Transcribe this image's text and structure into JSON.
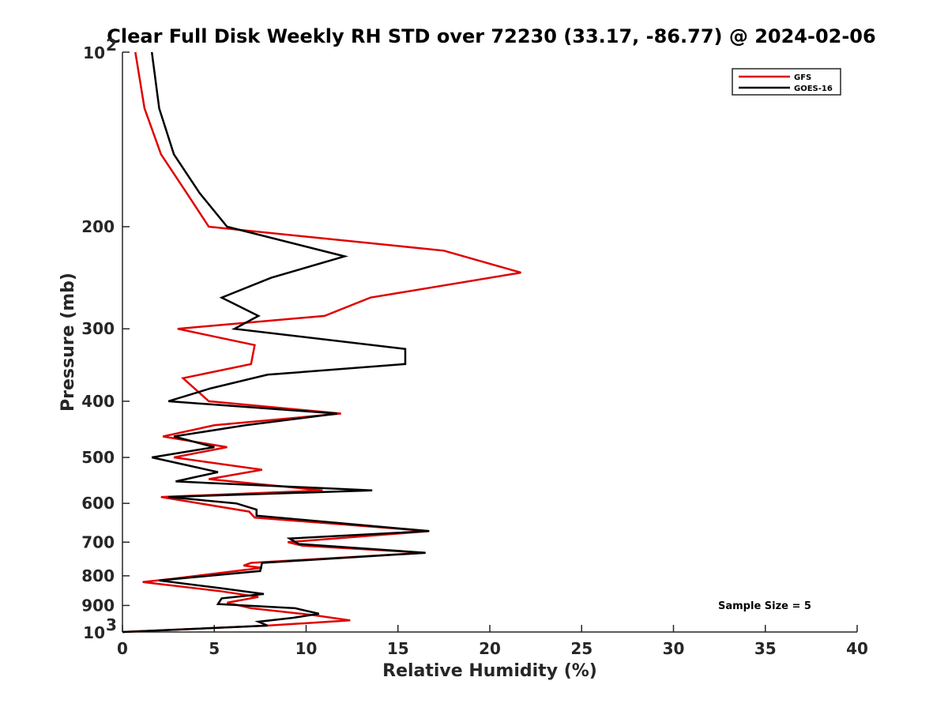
{
  "chart_data": {
    "type": "line",
    "title": "Clear Full Disk Weekly RH STD over 72230 (33.17, -86.77) @ 2024-02-06",
    "xlabel": "Relative Humidity (%)",
    "ylabel": "Pressure (mb)",
    "xlim": [
      0,
      40
    ],
    "ylim": [
      100,
      1000
    ],
    "yscale": "log",
    "y_direction": "reversed",
    "grid": false,
    "x_ticks": [
      "0",
      "5",
      "10",
      "15",
      "20",
      "25",
      "30",
      "35",
      "40"
    ],
    "y_ticks": [
      {
        "value": 100,
        "label": "10",
        "sup": "2"
      },
      {
        "value": 200,
        "label": "200",
        "sup": ""
      },
      {
        "value": 300,
        "label": "300",
        "sup": ""
      },
      {
        "value": 400,
        "label": "400",
        "sup": ""
      },
      {
        "value": 500,
        "label": "500",
        "sup": ""
      },
      {
        "value": 600,
        "label": "600",
        "sup": ""
      },
      {
        "value": 700,
        "label": "700",
        "sup": ""
      },
      {
        "value": 800,
        "label": "800",
        "sup": ""
      },
      {
        "value": 900,
        "label": "900",
        "sup": ""
      },
      {
        "value": 1000,
        "label": "10",
        "sup": "3"
      }
    ],
    "legend_position": "top-right",
    "series": [
      {
        "name": "GFS",
        "color": "#e00000",
        "points": [
          [
            0.7,
            100
          ],
          [
            1.2,
            125
          ],
          [
            2.1,
            150
          ],
          [
            3.5,
            175
          ],
          [
            4.7,
            200
          ],
          [
            17.5,
            220
          ],
          [
            21.7,
            240
          ],
          [
            13.5,
            265
          ],
          [
            11.0,
            285
          ],
          [
            3.0,
            300
          ],
          [
            7.2,
            320
          ],
          [
            7.0,
            345
          ],
          [
            3.3,
            365
          ],
          [
            4.7,
            400
          ],
          [
            11.9,
            420
          ],
          [
            5.0,
            440
          ],
          [
            2.2,
            460
          ],
          [
            5.7,
            480
          ],
          [
            2.8,
            500
          ],
          [
            7.6,
            525
          ],
          [
            4.7,
            545
          ],
          [
            10.9,
            570
          ],
          [
            2.1,
            585
          ],
          [
            6.9,
            620
          ],
          [
            7.2,
            635
          ],
          [
            16.7,
            670
          ],
          [
            9.0,
            700
          ],
          [
            9.8,
            710
          ],
          [
            16.5,
            730
          ],
          [
            7.0,
            760
          ],
          [
            6.6,
            768
          ],
          [
            7.6,
            775
          ],
          [
            2.7,
            810
          ],
          [
            1.1,
            820
          ],
          [
            5.3,
            850
          ],
          [
            7.4,
            870
          ],
          [
            5.7,
            890
          ],
          [
            7.0,
            910
          ],
          [
            10.4,
            935
          ],
          [
            12.4,
            955
          ],
          [
            7.9,
            975
          ],
          [
            0,
            1000
          ]
        ]
      },
      {
        "name": "GOES-16",
        "color": "#000000",
        "points": [
          [
            1.6,
            100
          ],
          [
            2.0,
            125
          ],
          [
            2.8,
            150
          ],
          [
            4.2,
            175
          ],
          [
            5.7,
            200
          ],
          [
            12.1,
            225
          ],
          [
            8.1,
            245
          ],
          [
            5.4,
            265
          ],
          [
            7.4,
            285
          ],
          [
            6.1,
            300
          ],
          [
            15.4,
            325
          ],
          [
            15.4,
            345
          ],
          [
            7.9,
            360
          ],
          [
            4.8,
            380
          ],
          [
            2.5,
            400
          ],
          [
            11.7,
            420
          ],
          [
            6.7,
            440
          ],
          [
            2.8,
            460
          ],
          [
            5.0,
            480
          ],
          [
            1.6,
            500
          ],
          [
            5.2,
            530
          ],
          [
            2.9,
            550
          ],
          [
            13.6,
            570
          ],
          [
            2.5,
            585
          ],
          [
            6.2,
            600
          ],
          [
            7.3,
            615
          ],
          [
            7.3,
            630
          ],
          [
            16.7,
            670
          ],
          [
            9.1,
            690
          ],
          [
            9.6,
            705
          ],
          [
            16.5,
            730
          ],
          [
            7.6,
            760
          ],
          [
            7.5,
            785
          ],
          [
            2.0,
            815
          ],
          [
            5.3,
            840
          ],
          [
            7.7,
            860
          ],
          [
            5.4,
            875
          ],
          [
            5.2,
            895
          ],
          [
            9.4,
            910
          ],
          [
            10.7,
            930
          ],
          [
            9.3,
            945
          ],
          [
            7.4,
            960
          ],
          [
            7.9,
            975
          ],
          [
            0,
            1000
          ]
        ]
      }
    ],
    "annotation": "Sample Size = 5"
  }
}
